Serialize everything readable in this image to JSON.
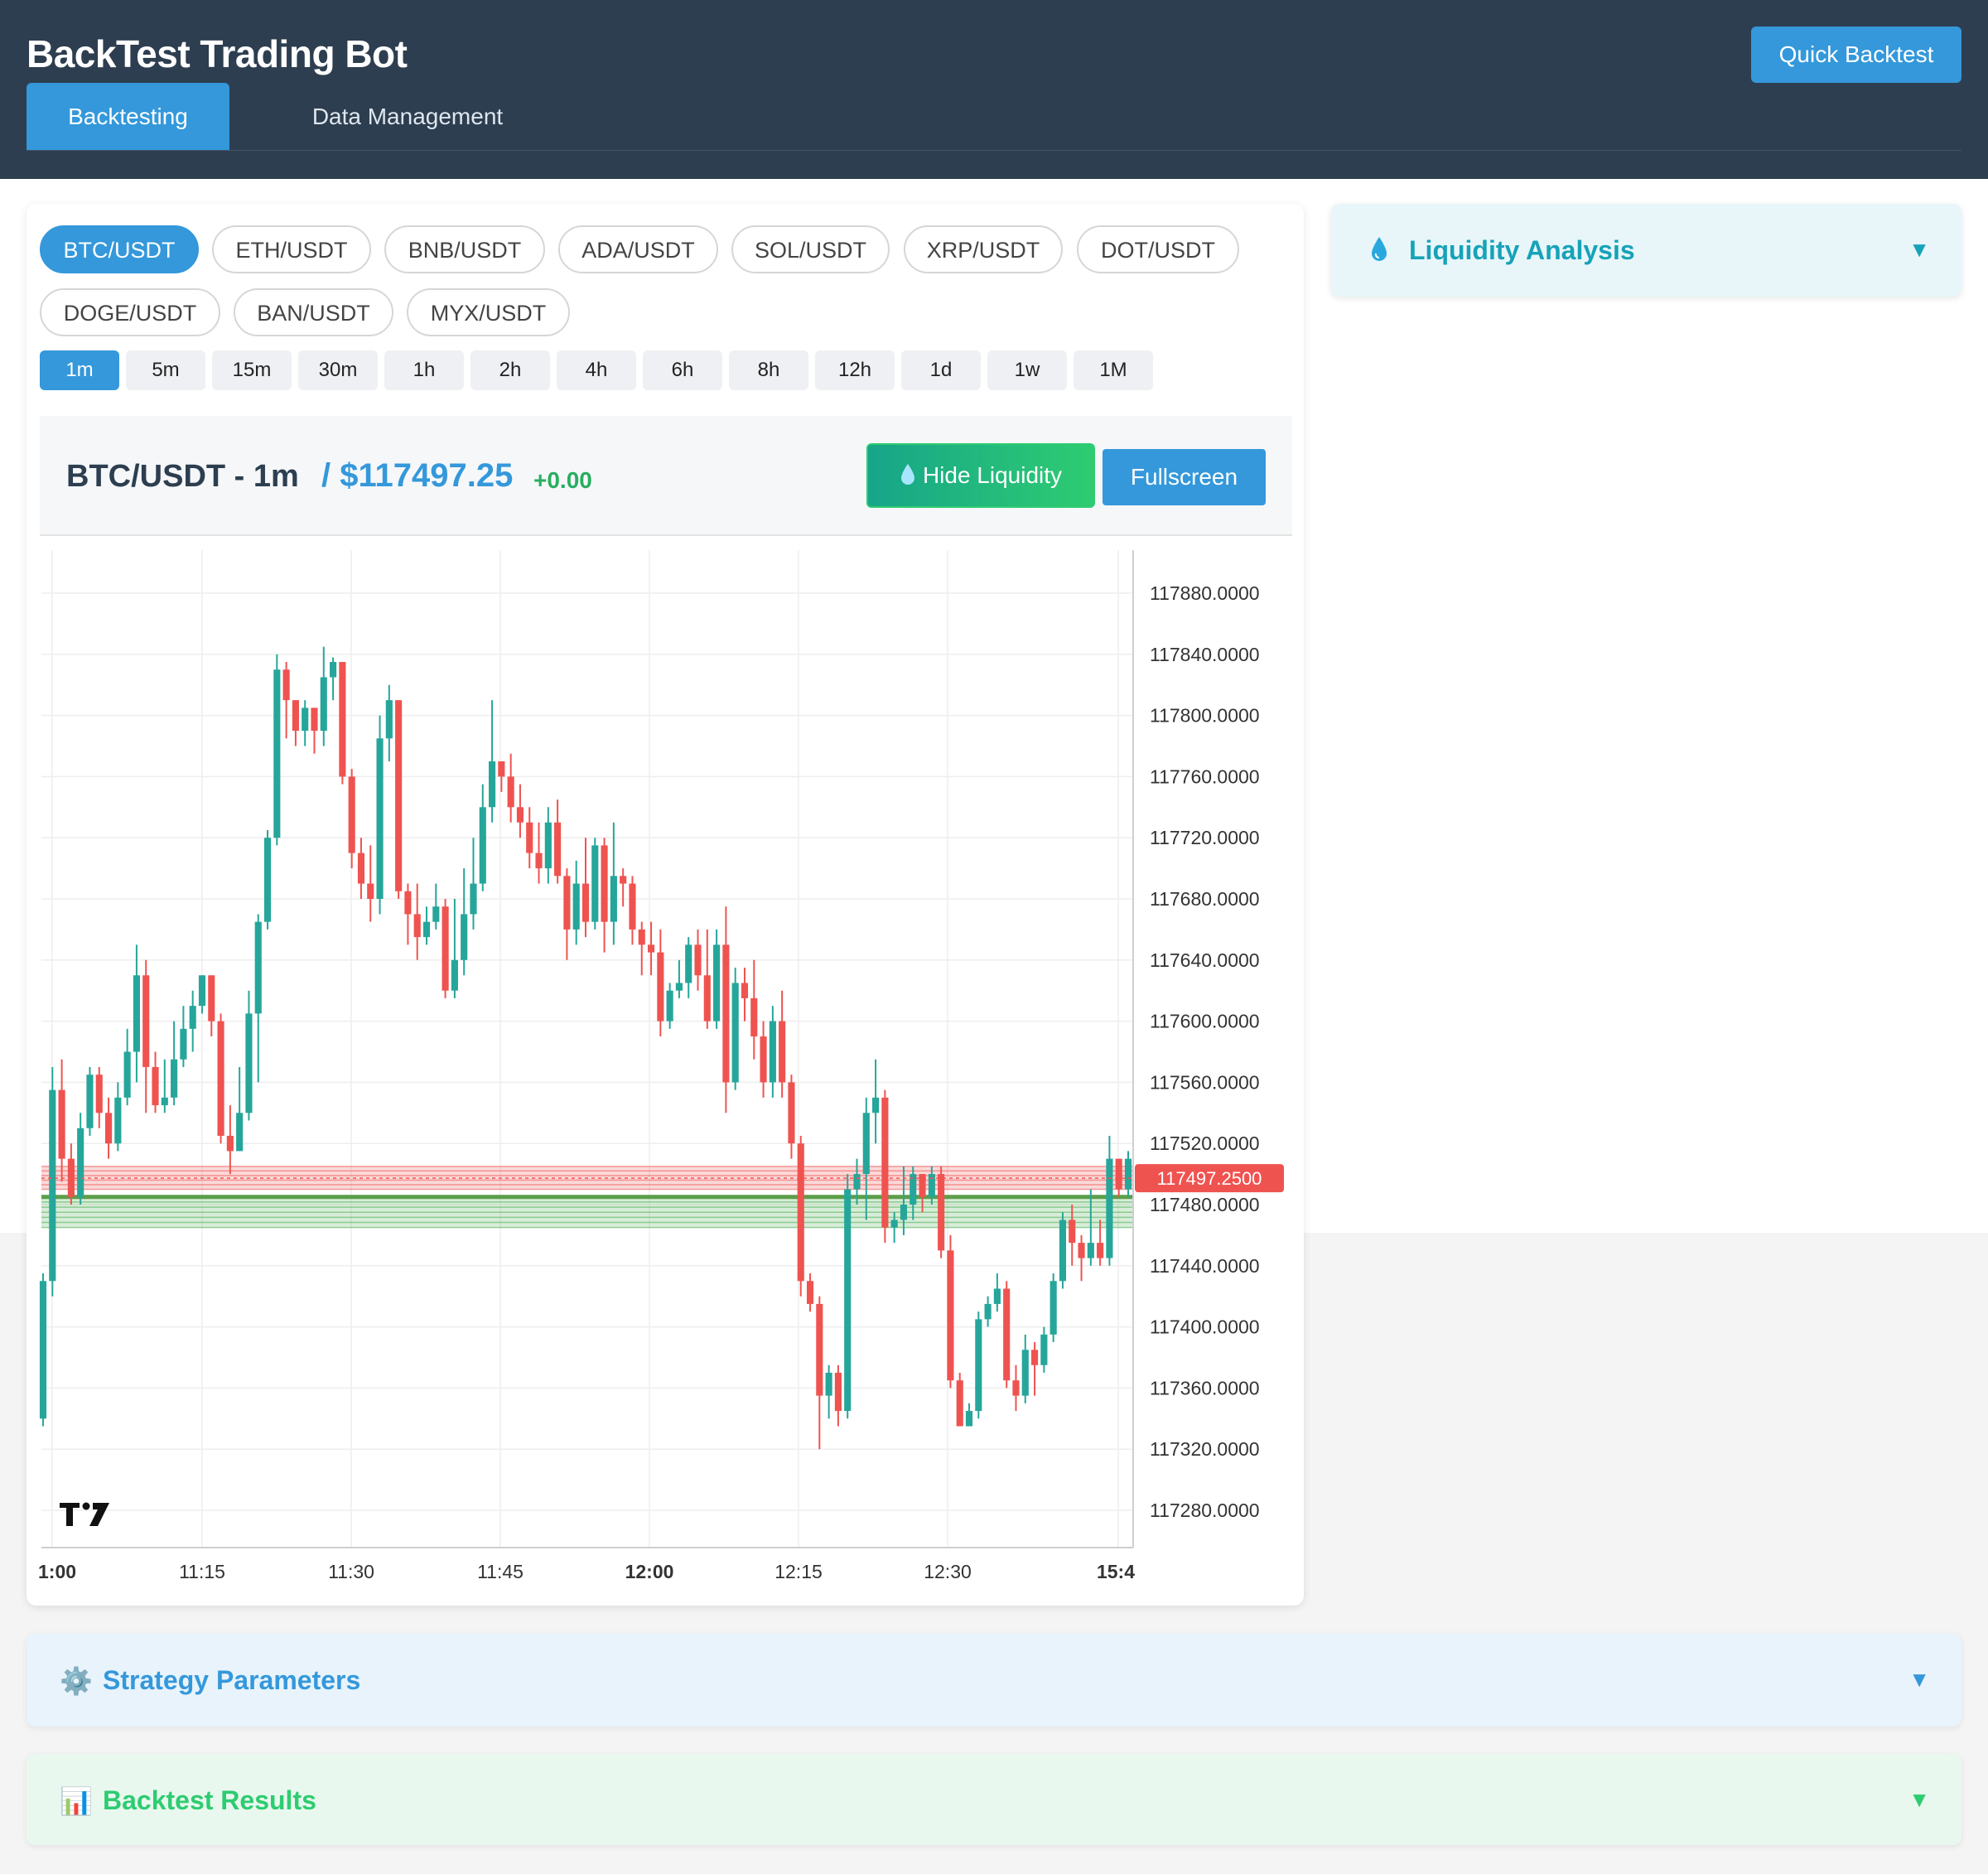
{
  "header": {
    "title": "BackTest Trading Bot",
    "quick_backtest_label": "Quick Backtest",
    "tabs": [
      {
        "label": "Backtesting",
        "active": true
      },
      {
        "label": "Data Management",
        "active": false
      }
    ]
  },
  "pairs": [
    {
      "label": "BTC/USDT",
      "active": true
    },
    {
      "label": "ETH/USDT",
      "active": false
    },
    {
      "label": "BNB/USDT",
      "active": false
    },
    {
      "label": "ADA/USDT",
      "active": false
    },
    {
      "label": "SOL/USDT",
      "active": false
    },
    {
      "label": "XRP/USDT",
      "active": false
    },
    {
      "label": "DOT/USDT",
      "active": false
    },
    {
      "label": "DOGE/USDT",
      "active": false
    },
    {
      "label": "BAN/USDT",
      "active": false
    },
    {
      "label": "MYX/USDT",
      "active": false
    }
  ],
  "timeframes": [
    {
      "label": "1m",
      "active": true
    },
    {
      "label": "5m",
      "active": false
    },
    {
      "label": "15m",
      "active": false
    },
    {
      "label": "30m",
      "active": false
    },
    {
      "label": "1h",
      "active": false
    },
    {
      "label": "2h",
      "active": false
    },
    {
      "label": "4h",
      "active": false
    },
    {
      "label": "6h",
      "active": false
    },
    {
      "label": "8h",
      "active": false
    },
    {
      "label": "12h",
      "active": false
    },
    {
      "label": "1d",
      "active": false
    },
    {
      "label": "1w",
      "active": false
    },
    {
      "label": "1M",
      "active": false
    }
  ],
  "chart_header": {
    "pair_tf": "BTC/USDT - 1m",
    "price": "/ $117497.25",
    "change": "+0.00",
    "hide_liquidity_label": "Hide Liquidity",
    "fullscreen_label": "Fullscreen"
  },
  "liquidity": {
    "title": "Liquidity Analysis",
    "arrow": "▼"
  },
  "sections": {
    "strategy": {
      "title": "Strategy Parameters",
      "icon": "⚙️",
      "arrow": "▼"
    },
    "results": {
      "title": "Backtest Results",
      "icon": "📊",
      "arrow": "▼"
    }
  },
  "colors": {
    "header_bg": "#2d3e50",
    "accent": "#3498db",
    "up": "#26a69a",
    "down": "#ef5350",
    "liquidity": "#17a2b8"
  },
  "chart_data": {
    "type": "candlestick",
    "y_ticks": [
      "117880.0000",
      "117840.0000",
      "117800.0000",
      "117760.0000",
      "117720.0000",
      "117680.0000",
      "117640.0000",
      "117600.0000",
      "117560.0000",
      "117520.0000",
      "117480.0000",
      "117440.0000",
      "117400.0000",
      "117360.0000",
      "117320.0000",
      "117280.0000"
    ],
    "y_tick_values": [
      117880,
      117840,
      117800,
      117760,
      117720,
      117680,
      117640,
      117600,
      117560,
      117520,
      117480,
      117440,
      117400,
      117360,
      117320,
      117280
    ],
    "x_ticks": [
      {
        "label": "1:00",
        "bold": true
      },
      {
        "label": "11:15",
        "bold": false
      },
      {
        "label": "11:30",
        "bold": false
      },
      {
        "label": "11:45",
        "bold": false
      },
      {
        "label": "12:00",
        "bold": true
      },
      {
        "label": "12:15",
        "bold": false
      },
      {
        "label": "12:30",
        "bold": false
      },
      {
        "label": "15:4",
        "bold": true
      }
    ],
    "last_price": 117497.25,
    "last_price_label": "117497.2500",
    "resistance_zone": [
      117490,
      117505
    ],
    "support_zone": [
      117465,
      117485
    ],
    "ylim": [
      117260,
      117900
    ],
    "candles": [
      [
        117340,
        117430,
        117335,
        117435
      ],
      [
        117430,
        117555,
        117420,
        117570
      ],
      [
        117555,
        117510,
        117495,
        117575
      ],
      [
        117510,
        117485,
        117480,
        117520
      ],
      [
        117485,
        117530,
        117480,
        117540
      ],
      [
        117530,
        117565,
        117525,
        117570
      ],
      [
        117565,
        117540,
        117530,
        117570
      ],
      [
        117540,
        117520,
        117510,
        117550
      ],
      [
        117520,
        117550,
        117515,
        117560
      ],
      [
        117550,
        117580,
        117545,
        117595
      ],
      [
        117580,
        117630,
        117560,
        117650
      ],
      [
        117630,
        117570,
        117540,
        117640
      ],
      [
        117570,
        117545,
        117540,
        117580
      ],
      [
        117545,
        117550,
        117540,
        117575
      ],
      [
        117550,
        117575,
        117545,
        117600
      ],
      [
        117575,
        117595,
        117570,
        117610
      ],
      [
        117595,
        117610,
        117580,
        117620
      ],
      [
        117610,
        117630,
        117605,
        117630
      ],
      [
        117630,
        117600,
        117590,
        117630
      ],
      [
        117600,
        117525,
        117520,
        117605
      ],
      [
        117525,
        117515,
        117500,
        117545
      ],
      [
        117515,
        117540,
        117515,
        117570
      ],
      [
        117540,
        117605,
        117535,
        117620
      ],
      [
        117605,
        117665,
        117560,
        117670
      ],
      [
        117665,
        117720,
        117660,
        117725
      ],
      [
        117720,
        117830,
        117715,
        117840
      ],
      [
        117830,
        117810,
        117785,
        117835
      ],
      [
        117810,
        117790,
        117780,
        117810
      ],
      [
        117790,
        117805,
        117780,
        117810
      ],
      [
        117805,
        117790,
        117775,
        117805
      ],
      [
        117790,
        117825,
        117780,
        117845
      ],
      [
        117825,
        117835,
        117810,
        117838
      ],
      [
        117835,
        117760,
        117755,
        117835
      ],
      [
        117760,
        117710,
        117700,
        117765
      ],
      [
        117710,
        117690,
        117680,
        117720
      ],
      [
        117690,
        117680,
        117665,
        117715
      ],
      [
        117680,
        117785,
        117670,
        117800
      ],
      [
        117785,
        117810,
        117770,
        117820
      ],
      [
        117810,
        117685,
        117680,
        117810
      ],
      [
        117685,
        117670,
        117650,
        117690
      ],
      [
        117670,
        117655,
        117640,
        117690
      ],
      [
        117655,
        117665,
        117650,
        117675
      ],
      [
        117665,
        117675,
        117660,
        117690
      ],
      [
        117675,
        117620,
        117615,
        117680
      ],
      [
        117620,
        117640,
        117615,
        117680
      ],
      [
        117640,
        117670,
        117630,
        117700
      ],
      [
        117670,
        117690,
        117660,
        117720
      ],
      [
        117690,
        117740,
        117685,
        117755
      ],
      [
        117740,
        117770,
        117730,
        117810
      ],
      [
        117770,
        117760,
        117750,
        117770
      ],
      [
        117760,
        117740,
        117730,
        117775
      ],
      [
        117740,
        117730,
        117720,
        117755
      ],
      [
        117730,
        117710,
        117700,
        117740
      ],
      [
        117710,
        117700,
        117690,
        117730
      ],
      [
        117700,
        117730,
        117690,
        117740
      ],
      [
        117730,
        117695,
        117690,
        117745
      ],
      [
        117695,
        117660,
        117640,
        117700
      ],
      [
        117660,
        117690,
        117650,
        117705
      ],
      [
        117690,
        117665,
        117655,
        117720
      ],
      [
        117665,
        117715,
        117660,
        117720
      ],
      [
        117715,
        117665,
        117645,
        117720
      ],
      [
        117665,
        117695,
        117650,
        117730
      ],
      [
        117695,
        117690,
        117675,
        117700
      ],
      [
        117690,
        117660,
        117650,
        117695
      ],
      [
        117660,
        117650,
        117630,
        117665
      ],
      [
        117650,
        117645,
        117630,
        117665
      ],
      [
        117645,
        117600,
        117590,
        117660
      ],
      [
        117600,
        117620,
        117595,
        117625
      ],
      [
        117620,
        117625,
        117615,
        117640
      ],
      [
        117625,
        117650,
        117615,
        117655
      ],
      [
        117650,
        117630,
        117620,
        117660
      ],
      [
        117630,
        117600,
        117595,
        117660
      ],
      [
        117600,
        117650,
        117595,
        117660
      ],
      [
        117650,
        117560,
        117540,
        117675
      ],
      [
        117560,
        117625,
        117555,
        117635
      ],
      [
        117625,
        117615,
        117600,
        117635
      ],
      [
        117615,
        117590,
        117575,
        117640
      ],
      [
        117590,
        117560,
        117550,
        117600
      ],
      [
        117560,
        117600,
        117550,
        117610
      ],
      [
        117600,
        117560,
        117550,
        117620
      ],
      [
        117560,
        117520,
        117510,
        117565
      ],
      [
        117520,
        117430,
        117420,
        117525
      ],
      [
        117430,
        117415,
        117410,
        117435
      ],
      [
        117415,
        117355,
        117320,
        117420
      ],
      [
        117355,
        117370,
        117340,
        117375
      ],
      [
        117370,
        117345,
        117335,
        117375
      ],
      [
        117345,
        117490,
        117340,
        117500
      ],
      [
        117490,
        117500,
        117480,
        117510
      ],
      [
        117500,
        117540,
        117470,
        117550
      ],
      [
        117540,
        117550,
        117520,
        117575
      ],
      [
        117550,
        117465,
        117455,
        117555
      ],
      [
        117465,
        117470,
        117455,
        117475
      ],
      [
        117470,
        117480,
        117460,
        117505
      ],
      [
        117480,
        117500,
        117470,
        117505
      ],
      [
        117500,
        117485,
        117475,
        117500
      ],
      [
        117485,
        117500,
        117480,
        117505
      ],
      [
        117500,
        117450,
        117445,
        117505
      ],
      [
        117450,
        117365,
        117360,
        117460
      ],
      [
        117365,
        117335,
        117335,
        117370
      ],
      [
        117335,
        117345,
        117335,
        117350
      ],
      [
        117345,
        117405,
        117340,
        117410
      ],
      [
        117405,
        117415,
        117400,
        117420
      ],
      [
        117415,
        117425,
        117410,
        117435
      ],
      [
        117425,
        117365,
        117360,
        117430
      ],
      [
        117365,
        117355,
        117345,
        117375
      ],
      [
        117355,
        117385,
        117350,
        117395
      ],
      [
        117385,
        117375,
        117355,
        117390
      ],
      [
        117375,
        117395,
        117370,
        117400
      ],
      [
        117395,
        117430,
        117390,
        117435
      ],
      [
        117430,
        117470,
        117425,
        117475
      ],
      [
        117470,
        117455,
        117440,
        117480
      ],
      [
        117455,
        117445,
        117430,
        117460
      ],
      [
        117445,
        117455,
        117440,
        117490
      ],
      [
        117455,
        117445,
        117440,
        117470
      ],
      [
        117445,
        117510,
        117440,
        117525
      ],
      [
        117510,
        117490,
        117485,
        117510
      ],
      [
        117490,
        117510,
        117485,
        117515
      ]
    ]
  }
}
